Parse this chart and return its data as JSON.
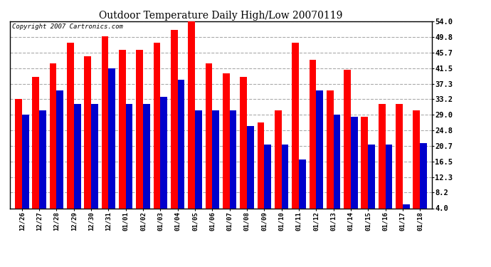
{
  "title": "Outdoor Temperature Daily High/Low 20070119",
  "copyright": "Copyright 2007 Cartronics.com",
  "dates": [
    "12/26",
    "12/27",
    "12/28",
    "12/29",
    "12/30",
    "12/31",
    "01/01",
    "01/02",
    "01/03",
    "01/04",
    "01/05",
    "01/06",
    "01/07",
    "01/08",
    "01/09",
    "01/10",
    "01/11",
    "01/12",
    "01/13",
    "01/14",
    "01/15",
    "01/16",
    "01/17",
    "01/18"
  ],
  "highs": [
    33.2,
    39.2,
    42.8,
    48.2,
    44.6,
    50.0,
    46.4,
    46.4,
    48.2,
    51.8,
    54.0,
    42.8,
    40.1,
    39.2,
    27.0,
    30.2,
    48.2,
    43.7,
    35.6,
    41.0,
    28.4,
    32.0,
    32.0,
    30.2
  ],
  "lows": [
    29.0,
    30.2,
    35.6,
    32.0,
    32.0,
    41.5,
    32.0,
    32.0,
    33.8,
    38.3,
    30.2,
    30.2,
    30.2,
    26.0,
    21.0,
    21.0,
    17.0,
    35.6,
    29.0,
    28.4,
    21.0,
    21.0,
    5.0,
    21.5
  ],
  "high_color": "#ff0000",
  "low_color": "#0000cc",
  "yticks": [
    4.0,
    8.2,
    12.3,
    16.5,
    20.7,
    24.8,
    29.0,
    33.2,
    37.3,
    41.5,
    45.7,
    49.8,
    54.0
  ],
  "ymin": 4.0,
  "ymax": 54.0,
  "bg_color": "#ffffff",
  "plot_bg_color": "#ffffff",
  "grid_color": "#aaaaaa",
  "bar_width": 0.4
}
